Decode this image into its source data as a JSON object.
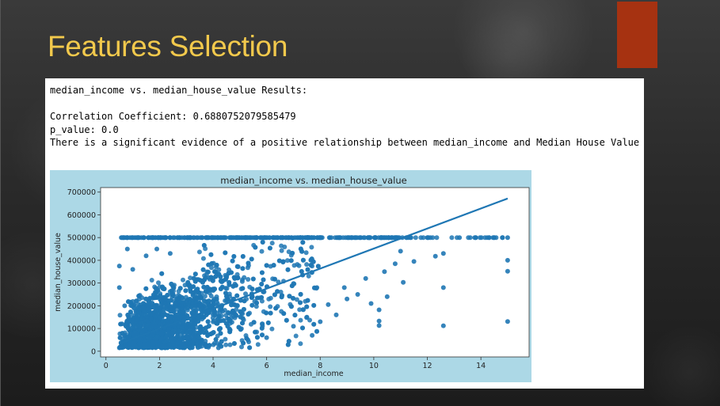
{
  "slide": {
    "title": "Features Selection",
    "accent_color": "#a63211",
    "title_color": "#f2c94c"
  },
  "output": {
    "header": "median_income vs. median_house_value Results:",
    "correlation": "Correlation Coefficient: 0.6880752079585479",
    "p_value": "p_value: 0.0",
    "conclusion": "There is a significant evidence of a positive relationship between median_income and Median House Value"
  },
  "chart_data": {
    "type": "scatter",
    "title": "median_income vs. median_house_value",
    "xlabel": "median_income",
    "ylabel": "median_house_value",
    "xlim": [
      -0.2,
      15.8
    ],
    "ylim": [
      -25000,
      720000
    ],
    "xticks": [
      0,
      2,
      4,
      6,
      8,
      10,
      12,
      14
    ],
    "yticks": [
      0,
      100000,
      200000,
      300000,
      400000,
      500000,
      600000,
      700000
    ],
    "grid": false,
    "point_color": "#1f77b4",
    "regression_line": {
      "x": [
        0.5,
        15
      ],
      "y": [
        33000,
        672000
      ]
    },
    "outlier_points": [
      {
        "x": 15,
        "y": 500001
      },
      {
        "x": 15,
        "y": 400000
      },
      {
        "x": 15,
        "y": 352000
      },
      {
        "x": 15,
        "y": 131000
      },
      {
        "x": 12.6,
        "y": 280000
      },
      {
        "x": 12.6,
        "y": 112000
      },
      {
        "x": 12.3,
        "y": 418000
      },
      {
        "x": 12.6,
        "y": 430000
      },
      {
        "x": 11.5,
        "y": 395000
      },
      {
        "x": 11.1,
        "y": 303000
      },
      {
        "x": 10.2,
        "y": 133000
      },
      {
        "x": 10.2,
        "y": 113000
      },
      {
        "x": 10.5,
        "y": 240000
      },
      {
        "x": 10.2,
        "y": 182000
      },
      {
        "x": 9.9,
        "y": 210000
      },
      {
        "x": 7.7,
        "y": 70000
      },
      {
        "x": 10.8,
        "y": 385000
      },
      {
        "x": 11.0,
        "y": 440000
      },
      {
        "x": 9.4,
        "y": 250000
      },
      {
        "x": 9.0,
        "y": 230000
      },
      {
        "x": 10.4,
        "y": 350000
      },
      {
        "x": 9.7,
        "y": 320000
      },
      {
        "x": 8.6,
        "y": 160000
      },
      {
        "x": 8.3,
        "y": 205000
      },
      {
        "x": 13.2,
        "y": 500001
      },
      {
        "x": 14.5,
        "y": 500001
      },
      {
        "x": 14.8,
        "y": 500001
      },
      {
        "x": 13.8,
        "y": 500001
      },
      {
        "x": 12.0,
        "y": 500001
      },
      {
        "x": 0.6,
        "y": 500001
      },
      {
        "x": 0.9,
        "y": 500001
      },
      {
        "x": 1.2,
        "y": 500001
      },
      {
        "x": 1.6,
        "y": 500001
      },
      {
        "x": 2.2,
        "y": 500001
      },
      {
        "x": 0.5,
        "y": 375000
      },
      {
        "x": 0.5,
        "y": 15000
      },
      {
        "x": 0.6,
        "y": 120000
      },
      {
        "x": 0.5,
        "y": 280000
      },
      {
        "x": 0.8,
        "y": 450000
      },
      {
        "x": 1.0,
        "y": 360000
      },
      {
        "x": 1.5,
        "y": 420000
      },
      {
        "x": 1.9,
        "y": 450000
      },
      {
        "x": 2.4,
        "y": 430000
      },
      {
        "x": 0.7,
        "y": 200000
      },
      {
        "x": 4.2,
        "y": 15000
      },
      {
        "x": 3.5,
        "y": 20000
      },
      {
        "x": 5.3,
        "y": 50000
      },
      {
        "x": 6.0,
        "y": 60000
      },
      {
        "x": 7.0,
        "y": 110000
      },
      {
        "x": 7.5,
        "y": 150000
      },
      {
        "x": 8.0,
        "y": 130000
      },
      {
        "x": 8.9,
        "y": 280000
      }
    ],
    "dense_region": {
      "x_min": 0.5,
      "x_max": 15,
      "y_cap": 500001
    }
  }
}
